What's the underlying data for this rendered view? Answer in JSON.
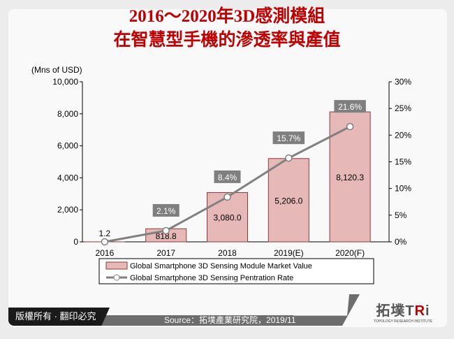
{
  "title_line1": "2016～2020年3D感測模組",
  "title_line2": "在智慧型手機的滲透率與產值",
  "footer": {
    "copyright": "版權所有 · 翻印必究",
    "source": "Source：拓墣產業研究院，2019/11",
    "logo": "拓墣TRi",
    "logo_sub": "TOPOLOGY RESEARCH INSTITUTE"
  },
  "colors": {
    "bar": "#e6b9b8",
    "bar_border": "#8b3a3a",
    "line": "#808080",
    "label_bg": "#7f7f7f",
    "title": "#c00000"
  },
  "chart_data": {
    "type": "bar+line",
    "categories": [
      "2016",
      "2017",
      "2018",
      "2019(E)",
      "2020(F)"
    ],
    "ylabel": "(Mns of USD)",
    "ylim": [
      0,
      10000
    ],
    "yticks": [
      "0",
      "2,000",
      "4,000",
      "6,000",
      "8,000",
      "10,000"
    ],
    "y2lim": [
      0,
      30
    ],
    "y2ticks": [
      "0%",
      "5%",
      "10%",
      "15%",
      "20%",
      "25%",
      "30%"
    ],
    "series": [
      {
        "name": "Global Smartphone 3D Sensing Module Market Value",
        "type": "bar",
        "axis": "left",
        "values": [
          1.2,
          818.8,
          3080.0,
          5206.0,
          8120.3
        ],
        "labels": [
          "1.2",
          "818.8",
          "3,080.0",
          "5,206.0",
          "8,120.3"
        ]
      },
      {
        "name": "Global Smartphone 3D Sensing Pentration Rate",
        "type": "line",
        "axis": "right",
        "values": [
          0,
          2.1,
          8.4,
          15.7,
          21.6
        ],
        "labels": [
          "",
          "2.1%",
          "8.4%",
          "15.7%",
          "21.6%"
        ]
      }
    ],
    "legend": "bottom",
    "grid": false
  }
}
